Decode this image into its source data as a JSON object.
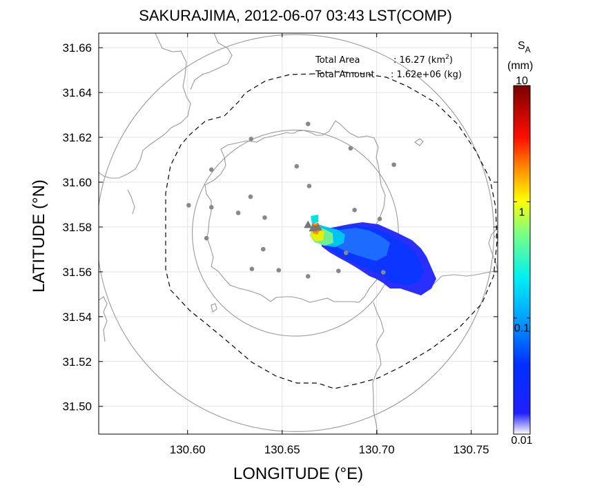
{
  "title": "SAKURAJIMA, 2012-06-07 03:43 LST(COMP)",
  "x_axis": {
    "label": "LONGITUDE (°E)",
    "min": 130.553,
    "max": 130.764,
    "ticks": [
      "130.60",
      "130.65",
      "130.70",
      "130.75"
    ],
    "tick_values": [
      130.6,
      130.65,
      130.7,
      130.75
    ]
  },
  "y_axis": {
    "label": "LATITUDE (°N)",
    "min": 31.4876,
    "max": 31.6665,
    "ticks": [
      "31.50",
      "31.52",
      "31.54",
      "31.56",
      "31.58",
      "31.60",
      "31.62",
      "31.64",
      "31.66"
    ],
    "tick_values": [
      31.5,
      31.52,
      31.54,
      31.56,
      31.58,
      31.6,
      31.62,
      31.64,
      31.66
    ]
  },
  "annotations": {
    "area_label": "Total Area",
    "area_value": ": 16.27 (km",
    "area_sup": "2",
    "area_close": ")",
    "amount_label": "Total Amount",
    "amount_value": ": 1.62e+06 (kg)"
  },
  "colorbar": {
    "symbol": "S",
    "subscript": "A",
    "unit": "(mm)",
    "scale": "log",
    "min": 0.01,
    "max": 10,
    "ticks": [
      "10",
      "1",
      "0.1",
      "0.01"
    ],
    "tick_values": [
      10,
      1,
      0.1,
      0.01
    ],
    "colors": [
      "#ffffff",
      "#0a0aff",
      "#0080ff",
      "#00f0ff",
      "#ffff00",
      "#ff8000",
      "#ff0000",
      "#800000"
    ]
  },
  "vents": [
    {
      "lon": 130.6637,
      "lat": 31.5808
    },
    {
      "lon": 130.6663,
      "lat": 31.5793
    },
    {
      "lon": 130.669,
      "lat": 31.5796
    }
  ],
  "stations": [
    {
      "lon": 130.6637,
      "lat": 31.626
    },
    {
      "lon": 130.6336,
      "lat": 31.6193
    },
    {
      "lon": 130.6862,
      "lat": 31.6151
    },
    {
      "lon": 130.6577,
      "lat": 31.6071
    },
    {
      "lon": 130.7091,
      "lat": 31.6078
    },
    {
      "lon": 130.6126,
      "lat": 31.6056
    },
    {
      "lon": 130.6643,
      "lat": 31.5983
    },
    {
      "lon": 130.6006,
      "lat": 31.5897
    },
    {
      "lon": 130.6333,
      "lat": 31.5935
    },
    {
      "lon": 130.6126,
      "lat": 31.5888
    },
    {
      "lon": 130.6883,
      "lat": 31.5876
    },
    {
      "lon": 130.6268,
      "lat": 31.5863
    },
    {
      "lon": 130.6408,
      "lat": 31.5842
    },
    {
      "lon": 130.7016,
      "lat": 31.5836
    },
    {
      "lon": 130.61,
      "lat": 31.575
    },
    {
      "lon": 130.64,
      "lat": 31.5701
    },
    {
      "lon": 130.6838,
      "lat": 31.5685
    },
    {
      "lon": 130.634,
      "lat": 31.5613
    },
    {
      "lon": 130.6482,
      "lat": 31.5607
    },
    {
      "lon": 130.7035,
      "lat": 31.5598
    },
    {
      "lon": 130.6798,
      "lat": 31.5604
    },
    {
      "lon": 130.6637,
      "lat": 31.558
    }
  ],
  "range_rings": [
    {
      "lon": 130.657,
      "lat": 31.5773,
      "radius_deg": 0.0545,
      "style": "solid"
    },
    {
      "lon": 130.657,
      "lat": 31.5773,
      "radius_deg": 0.105,
      "style": "solid"
    }
  ]
}
